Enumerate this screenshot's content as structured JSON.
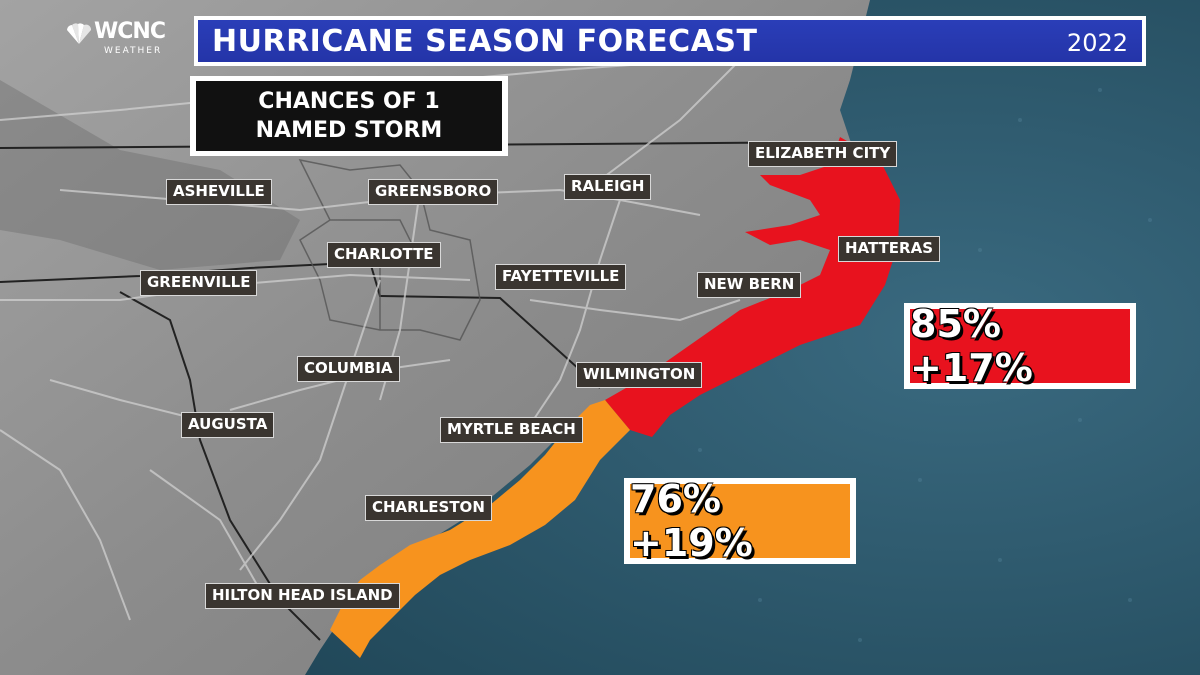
{
  "header": {
    "title": "HURRICANE SEASON FORECAST",
    "year": "2022"
  },
  "logo": {
    "brand": "WCNC",
    "sub": "WEATHER"
  },
  "subtitle": {
    "line1": "CHANCES OF 1",
    "line2": "NAMED STORM"
  },
  "zones": {
    "north": {
      "label": "85% +17%",
      "color": "#e8121e"
    },
    "south": {
      "label": "76% +19%",
      "color": "#f7931e"
    }
  },
  "cities": {
    "elizabeth_city": "ELIZABETH CITY",
    "asheville": "ASHEVILLE",
    "greensboro": "GREENSBORO",
    "raleigh": "RALEIGH",
    "hatteras": "HATTERAS",
    "charlotte": "CHARLOTTE",
    "greenville": "GREENVILLE",
    "fayetteville": "FAYETTEVILLE",
    "new_bern": "NEW BERN",
    "columbia": "COLUMBIA",
    "wilmington": "WILMINGTON",
    "augusta": "AUGUSTA",
    "myrtle_beach": "MYRTLE BEACH",
    "charleston": "CHARLESTON",
    "hilton_head": "HILTON HEAD ISLAND"
  },
  "colors": {
    "land": "#8f8f8f",
    "ocean": "#2f5a6e",
    "header_bg": "#2a3eb8"
  }
}
